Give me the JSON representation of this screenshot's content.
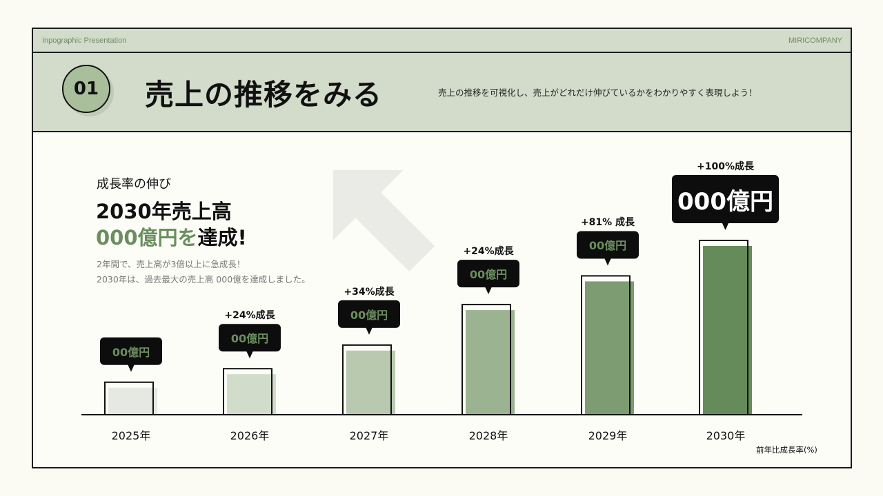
{
  "header": {
    "left_label": "Inpographic Presentation",
    "right_label": "MIRICOMPANY"
  },
  "section": {
    "number": "01",
    "title": "売上の推移をみる",
    "subtitle": "売上の推移を可視化し、売上がどれだけ伸びているかをわかりやすく表現しよう！"
  },
  "summary": {
    "kicker": "成長率の伸び",
    "headline_1": "2030年売上高",
    "headline_2_accent": "000億円を",
    "headline_2_rest": "達成!",
    "body_1": "2年間で、売上高が3倍以上に急成長！",
    "body_2": "2030年は、過去最大の売上高 000億を達成しました。"
  },
  "chart_data": {
    "type": "bar",
    "categories": [
      "2025年",
      "2026年",
      "2027年",
      "2028年",
      "2029年",
      "2030年"
    ],
    "relative_values_percent_of_max": [
      16,
      24,
      38,
      62,
      79,
      100
    ],
    "value_labels": [
      "00億円",
      "00億円",
      "00億円",
      "00億円",
      "00億円",
      "000億円"
    ],
    "growth_labels": [
      "",
      "+24%成長",
      "+34%成長",
      "+24%成長",
      "+81% 成長",
      "+100%成長"
    ],
    "bar_colors": [
      "#e6e8e3",
      "#d2dcca",
      "#b8c9b0",
      "#9cb391",
      "#7e9c72",
      "#668b5a"
    ],
    "note": "前年比成長率(%)",
    "grid": false,
    "accent_color": "#6b8e5e"
  }
}
